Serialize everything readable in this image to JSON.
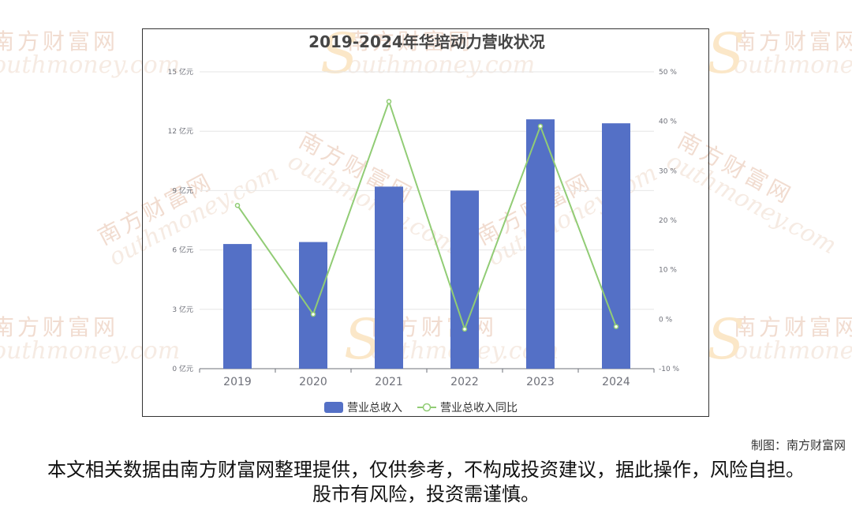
{
  "watermark": {
    "cn": "南方财富网",
    "en": "outhmoney.com"
  },
  "chart_data": {
    "type": "bar+line",
    "title": "2019-2024年华培动力营收状况",
    "categories": [
      "2019",
      "2020",
      "2021",
      "2022",
      "2023",
      "2024"
    ],
    "series": [
      {
        "name": "营业总收入",
        "type": "bar",
        "axis": "left",
        "color": "#5470c6",
        "values": [
          6.3,
          6.4,
          9.2,
          9.0,
          12.6,
          12.4
        ]
      },
      {
        "name": "营业总收入同比",
        "type": "line",
        "axis": "right",
        "color": "#91cc75",
        "values": [
          23.0,
          1.0,
          44.0,
          -2.0,
          39.0,
          -1.5
        ]
      }
    ],
    "y_left": {
      "min": 0,
      "max": 15,
      "step": 3,
      "unit": "亿元",
      "tick_labels": [
        "0 亿元",
        "3 亿元",
        "6 亿元",
        "9 亿元",
        "12 亿元",
        "15 亿元"
      ]
    },
    "y_right": {
      "min": -10,
      "max": 50,
      "step": 10,
      "unit": "%",
      "tick_labels": [
        "-10 %",
        "0 %",
        "10 %",
        "20 %",
        "30 %",
        "40 %",
        "50 %"
      ]
    },
    "grid": true,
    "legend": "bottom-center"
  },
  "footer": {
    "credit": "制图：南方财富网",
    "disclaimer": "本文相关数据由南方财富网整理提供，仅供参考，不构成投资建议，据此操作，风险自担。股市有风险，投资需谨慎。"
  }
}
